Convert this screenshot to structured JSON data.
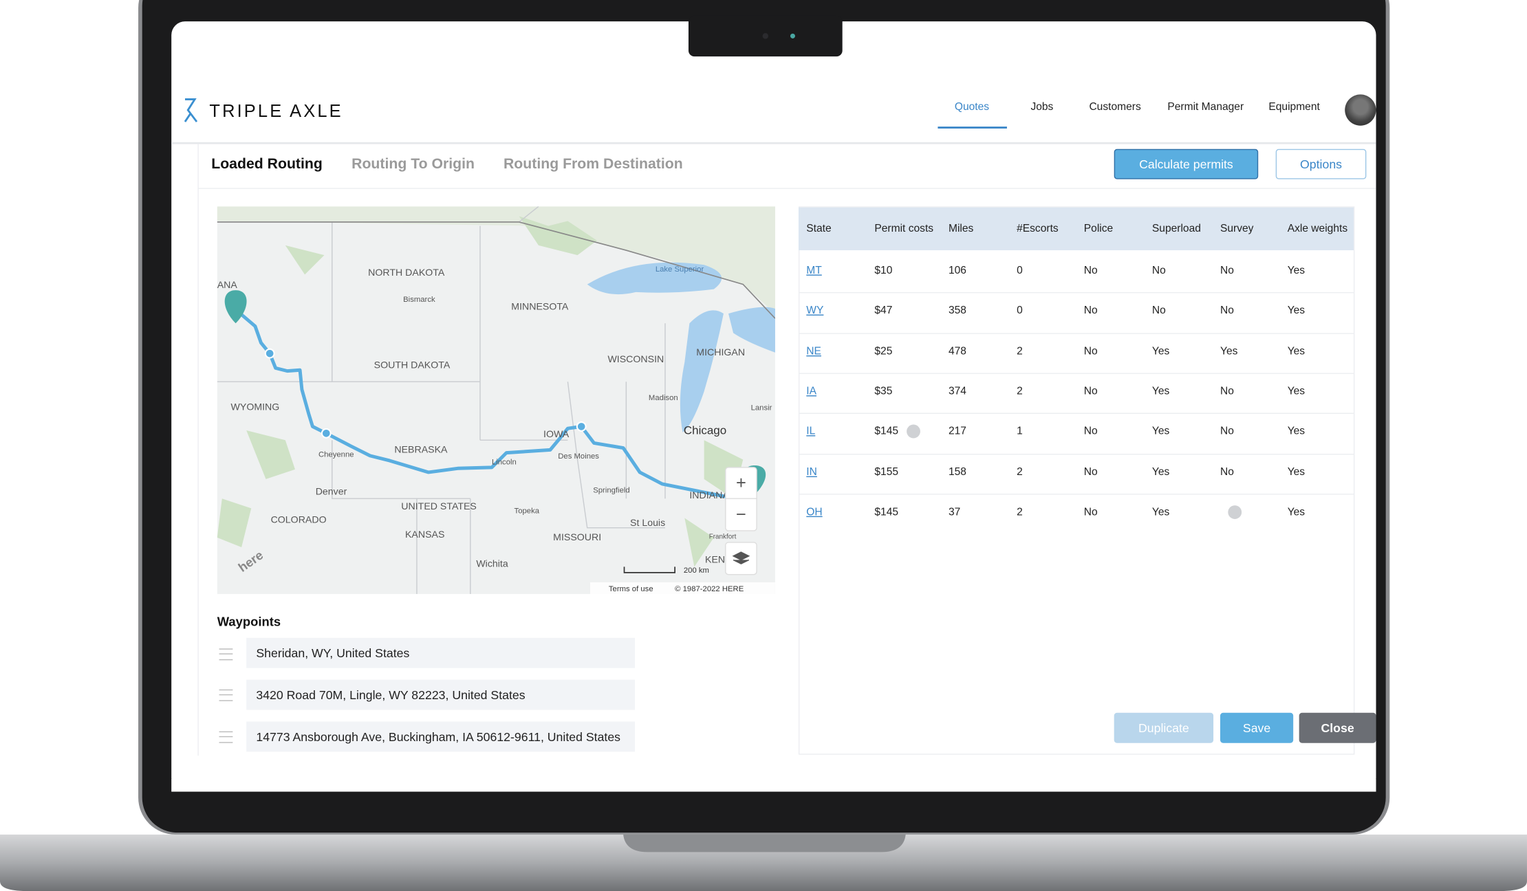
{
  "header": {
    "logo": "TRIPLE AXLE",
    "nav": [
      "Quotes",
      "Jobs",
      "Customers",
      "Permit Manager",
      "Equipment"
    ]
  },
  "tabs": [
    "Loaded Routing",
    "Routing To Origin",
    "Routing From Destination"
  ],
  "buttons": {
    "calculate": "Calculate permits",
    "options": "Options",
    "duplicate": "Duplicate",
    "save": "Save",
    "close": "Close"
  },
  "map": {
    "labels": [
      "ANA",
      "NORTH DAKOTA",
      "Bismarck",
      "MINNESOTA",
      "Lake Superior",
      "MICHIGAN",
      "WISCONSIN",
      "SOUTH DAKOTA",
      "WYOMING",
      "Madison",
      "Lansir",
      "Chicago",
      "IOWA",
      "Cheyenne",
      "NEBRASKA",
      "Lincoln",
      "Des Moines",
      "Denver",
      "UNITED STATES",
      "Topeka",
      "Springfield",
      "INDIANA",
      "St Louis",
      "COLORADO",
      "KANSAS",
      "MISSOURI",
      "Frankfort",
      "KEN",
      "Wichita",
      "here"
    ],
    "zoom_in": "+",
    "zoom_out": "−",
    "scale": "200 km",
    "terms": "Terms of use",
    "copyright": "© 1987-2022 HERE"
  },
  "waypoints": {
    "title": "Waypoints",
    "items": [
      "Sheridan, WY, United States",
      "3420 Road 70M, Lingle, WY 82223, United States",
      "14773 Ansborough Ave, Buckingham, IA 50612-9611, United States"
    ]
  },
  "table": {
    "columns": [
      "State",
      "Permit costs",
      "Miles",
      "#Escorts",
      "Police",
      "Superload",
      "Survey",
      "Axle weights"
    ],
    "rows": [
      [
        "MT",
        "$10",
        106,
        0,
        "No",
        "No",
        "No",
        "Yes"
      ],
      [
        "WY",
        "$47",
        358,
        0,
        "No",
        "No",
        "No",
        "Yes"
      ],
      [
        "NE",
        "$25",
        478,
        2,
        "No",
        "Yes",
        "Yes",
        "Yes"
      ],
      [
        "IA",
        "$35",
        374,
        2,
        "No",
        "Yes",
        "No",
        "Yes"
      ],
      [
        "IL",
        "$145",
        217,
        1,
        "No",
        "Yes",
        "No",
        "Yes"
      ],
      [
        "IN",
        "$155",
        158,
        2,
        "No",
        "Yes",
        "No",
        "Yes"
      ],
      [
        "OH",
        "$145",
        37,
        2,
        "No",
        "Yes",
        null,
        "Yes"
      ]
    ]
  }
}
